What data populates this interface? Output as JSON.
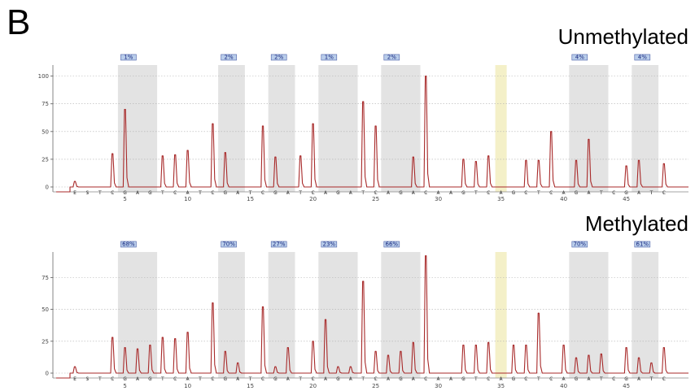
{
  "panel_letter": "B",
  "colors": {
    "trace": "#a82a2a",
    "region": "#e3e3e3",
    "control": "#f4f0c8",
    "pct_box": "#b9cdea",
    "pct_border": "#4a5fa8",
    "grid": "#b0b0b0"
  },
  "chart_data": [
    {
      "type": "line",
      "title": "Unmethylated",
      "ylim": [
        0,
        110
      ],
      "yticks": [
        "0",
        "25",
        "50",
        "75",
        "100"
      ],
      "grid": "horizontal dotted",
      "dispensation_order": [
        "E",
        "S",
        "T",
        "C",
        "G",
        "A",
        "G",
        "T",
        "C",
        "A",
        "T",
        "C",
        "G",
        "A",
        "T",
        "C",
        "G",
        "A",
        "T",
        "C",
        "A",
        "G",
        "A",
        "T",
        "C",
        "A",
        "G",
        "A",
        "C",
        "A",
        "A",
        "G",
        "T",
        "C",
        "A",
        "G",
        "C",
        "T",
        "C",
        "A",
        "G",
        "A",
        "T",
        "C",
        "G",
        "A",
        "T",
        "C"
      ],
      "x_ticks": [
        "5",
        "10",
        "15",
        "20",
        "25",
        "30",
        "35",
        "40",
        "45"
      ],
      "cpg_percent_labels": [
        "1%",
        "2%",
        "2%",
        "1%",
        "2%",
        "4%",
        "4%"
      ],
      "peak_heights": [
        5,
        0,
        0,
        30,
        70,
        0,
        0,
        28,
        29,
        33,
        0,
        57,
        31,
        0,
        0,
        55,
        27,
        0,
        28,
        57,
        0,
        0,
        0,
        77,
        55,
        0,
        0,
        27,
        100,
        0,
        0,
        25,
        23,
        28,
        0,
        0,
        24,
        24,
        50,
        0,
        24,
        43,
        0,
        0,
        19,
        24,
        0,
        21
      ]
    },
    {
      "type": "line",
      "title": "Methylated",
      "ylim": [
        0,
        95
      ],
      "yticks": [
        "0",
        "25",
        "50",
        "75"
      ],
      "grid": "horizontal dotted",
      "dispensation_order": [
        "E",
        "S",
        "T",
        "C",
        "G",
        "A",
        "G",
        "T",
        "C",
        "A",
        "T",
        "C",
        "G",
        "A",
        "T",
        "C",
        "G",
        "A",
        "T",
        "C",
        "A",
        "G",
        "A",
        "T",
        "C",
        "A",
        "G",
        "A",
        "C",
        "A",
        "A",
        "G",
        "T",
        "C",
        "A",
        "G",
        "C",
        "T",
        "C",
        "A",
        "G",
        "A",
        "T",
        "C",
        "G",
        "A",
        "T",
        "C"
      ],
      "x_ticks": [
        "5",
        "10",
        "15",
        "20",
        "25",
        "30",
        "35",
        "40",
        "45"
      ],
      "cpg_percent_labels": [
        "68%",
        "70%",
        "27%",
        "23%",
        "66%",
        "70%",
        "61%"
      ],
      "peak_heights": [
        5,
        0,
        0,
        28,
        20,
        19,
        22,
        28,
        27,
        32,
        0,
        55,
        17,
        8,
        0,
        52,
        5,
        20,
        0,
        25,
        42,
        5,
        5,
        72,
        17,
        14,
        17,
        24,
        92,
        0,
        0,
        22,
        22,
        24,
        0,
        22,
        22,
        47,
        0,
        22,
        12,
        14,
        15,
        0,
        20,
        12,
        8,
        20
      ]
    }
  ]
}
